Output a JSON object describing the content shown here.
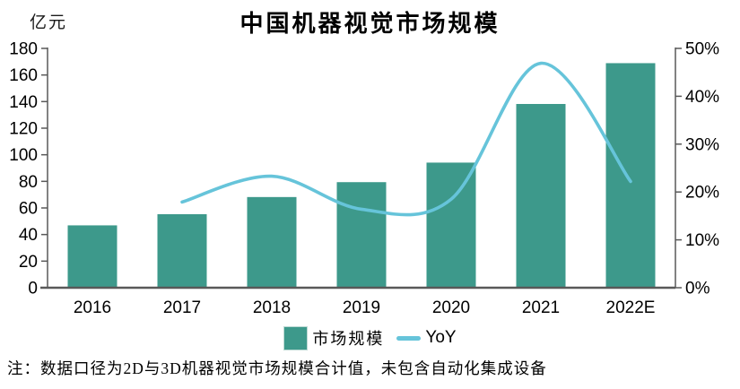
{
  "header": {
    "title": "中国机器视觉市场规模",
    "left_axis_unit": "亿元"
  },
  "legend": {
    "bar_label": "市场规模",
    "line_label": "YoY"
  },
  "footnote": "注：数据口径为2D与3D机器视觉市场规模合计值，未包含自动化集成设备",
  "colors": {
    "bar": "#3d998b",
    "line": "#66c4da",
    "axis": "#595959",
    "text": "#000000",
    "background": "#ffffff"
  },
  "chart_data": {
    "type": "bar",
    "title": "中国机器视觉市场规模",
    "categories": [
      "2016",
      "2017",
      "2018",
      "2019",
      "2020",
      "2021",
      "2022E"
    ],
    "series": [
      {
        "name": "市场规模",
        "type": "bar",
        "axis": "left",
        "unit": "亿元",
        "values": [
          46.9,
          55.3,
          68.2,
          79.4,
          94.1,
          138.2,
          168.9
        ]
      },
      {
        "name": "YoY",
        "type": "line",
        "axis": "right",
        "unit": "%",
        "smooth": true,
        "values": [
          null,
          17.9,
          23.3,
          16.4,
          18.5,
          46.9,
          22.2
        ]
      }
    ],
    "left_axis": {
      "label": "亿元",
      "min": 0,
      "max": 180,
      "step": 20
    },
    "right_axis": {
      "min": 0,
      "max": 50,
      "step": 10,
      "suffix": "%"
    },
    "grid": false,
    "legend_position": "bottom"
  }
}
